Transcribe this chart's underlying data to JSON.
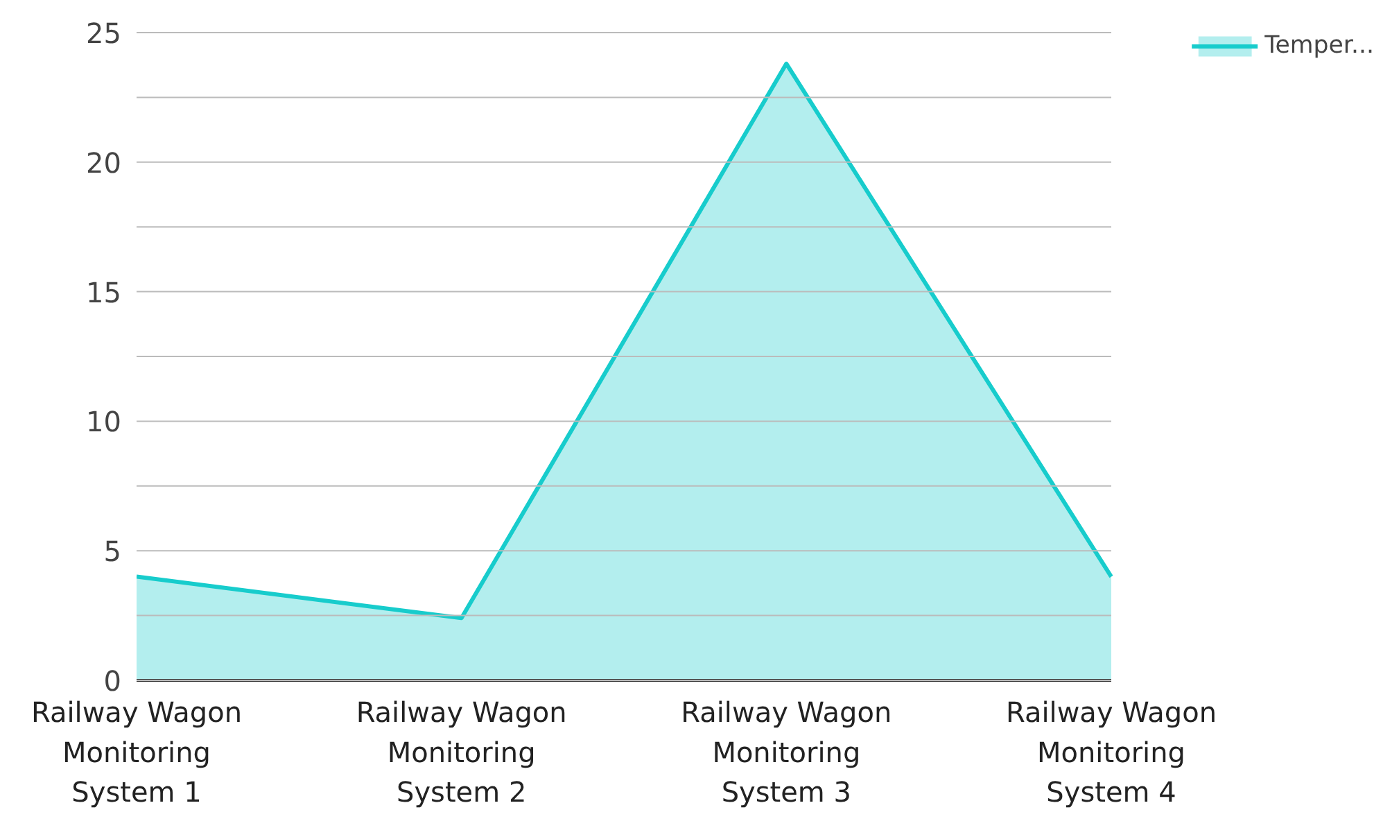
{
  "chart_data": {
    "type": "area",
    "categories": [
      "Railway Wagon Monitoring System 1",
      "Railway Wagon Monitoring System 2",
      "Railway Wagon Monitoring System 3",
      "Railway Wagon Monitoring System 4"
    ],
    "series": [
      {
        "name": "Temper...",
        "color": "#17cccc",
        "values": [
          4,
          2.4,
          23.8,
          4
        ]
      }
    ],
    "ylim": [
      0,
      25
    ],
    "yticks": [
      0,
      {
        "value": 2.5,
        "label": null
      },
      5,
      {
        "value": 7.5,
        "label": null
      },
      10,
      {
        "value": 12.5,
        "label": null
      },
      15,
      {
        "value": 17.5,
        "label": null
      },
      20,
      {
        "value": 22.5,
        "label": null
      },
      25
    ],
    "grid": "y",
    "legend": "top right"
  }
}
